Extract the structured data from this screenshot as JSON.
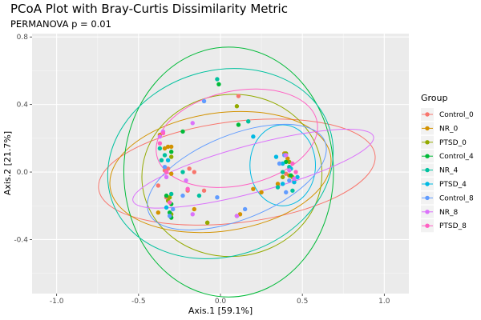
{
  "chart_data": {
    "type": "scatter",
    "title": "PCoA Plot with Bray-Curtis Dissimilarity Metric",
    "subtitle": "PERMANOVA p = 0.01",
    "xlabel": "Axis.1  [59.1%]",
    "ylabel": "Axis.2  [21.7%]",
    "xlim": [
      -1.15,
      1.15
    ],
    "ylim": [
      -0.72,
      0.82
    ],
    "xticks": [
      -1.0,
      -0.5,
      0.0,
      0.5,
      1.0
    ],
    "xtick_labels": [
      "-1.0",
      "-0.5",
      "0.0",
      "0.5",
      "1.0"
    ],
    "yticks": [
      -0.4,
      0.0,
      0.4,
      0.8
    ],
    "ytick_labels": [
      "-0.4",
      "0.0",
      "0.4",
      "0.8"
    ],
    "grid": true,
    "legend_title": "Group",
    "legend_position": "right",
    "series": [
      {
        "name": "Control_0",
        "color": "#F8766D",
        "points": [
          [
            0.11,
            0.45
          ],
          [
            -0.19,
            0.02
          ],
          [
            -0.16,
            0.0
          ],
          [
            -0.2,
            -0.11
          ],
          [
            -0.1,
            -0.11
          ],
          [
            -0.33,
            -0.15
          ],
          [
            -0.34,
            0.01
          ],
          [
            -0.32,
            0.02
          ],
          [
            -0.38,
            -0.08
          ],
          [
            0.45,
            -0.05
          ],
          [
            0.4,
            -0.01
          ]
        ],
        "ellipse": {
          "cx": 0.1,
          "cy": 0.0,
          "rx": 0.85,
          "ry": 0.3,
          "angle": 7
        }
      },
      {
        "name": "NR_0",
        "color": "#D39200",
        "points": [
          [
            -0.37,
            0.22
          ],
          [
            -0.32,
            0.15
          ],
          [
            -0.34,
            0.14
          ],
          [
            -0.3,
            0.15
          ],
          [
            -0.33,
            0.0
          ],
          [
            -0.3,
            -0.01
          ],
          [
            -0.38,
            -0.24
          ],
          [
            -0.16,
            -0.22
          ],
          [
            -0.08,
            -0.3
          ],
          [
            0.12,
            -0.25
          ],
          [
            0.2,
            -0.1
          ],
          [
            0.25,
            -0.12
          ],
          [
            0.35,
            -0.07
          ],
          [
            0.39,
            0.11
          ],
          [
            0.41,
            0.08
          ],
          [
            0.42,
            -0.02
          ],
          [
            0.44,
            -0.03
          ]
        ],
        "ellipse": {
          "cx": 0.0,
          "cy": 0.0,
          "rx": 0.68,
          "ry": 0.35,
          "angle": 8
        }
      },
      {
        "name": "PTSD_0",
        "color": "#93AA00",
        "points": [
          [
            0.1,
            0.39
          ],
          [
            -0.3,
            0.09
          ],
          [
            -0.31,
            -0.15
          ],
          [
            -0.32,
            -0.17
          ],
          [
            -0.3,
            -0.25
          ],
          [
            -0.08,
            -0.3
          ],
          [
            0.1,
            -0.26
          ],
          [
            0.4,
            0.11
          ],
          [
            0.42,
            0.06
          ],
          [
            0.38,
            -0.03
          ]
        ],
        "ellipse": {
          "cx": 0.07,
          "cy": -0.02,
          "rx": 0.55,
          "ry": 0.48,
          "angle": 5
        }
      },
      {
        "name": "Control_4",
        "color": "#00BA38",
        "points": [
          [
            -0.01,
            0.52
          ],
          [
            0.11,
            0.28
          ],
          [
            -0.23,
            0.24
          ],
          [
            -0.3,
            0.12
          ],
          [
            -0.33,
            -0.14
          ],
          [
            -0.3,
            -0.19
          ],
          [
            -0.31,
            -0.24
          ],
          [
            -0.3,
            -0.27
          ],
          [
            0.4,
            0.06
          ],
          [
            0.43,
            -0.02
          ]
        ],
        "ellipse": {
          "cx": 0.05,
          "cy": 0.0,
          "rx": 0.64,
          "ry": 0.74,
          "angle": 0
        }
      },
      {
        "name": "NR_4",
        "color": "#00C19F",
        "points": [
          [
            -0.02,
            0.55
          ],
          [
            0.17,
            0.3
          ],
          [
            -0.37,
            0.14
          ],
          [
            -0.34,
            0.1
          ],
          [
            -0.36,
            0.07
          ],
          [
            -0.23,
            0.0
          ],
          [
            -0.3,
            -0.13
          ],
          [
            -0.13,
            -0.14
          ],
          [
            0.35,
            -0.09
          ],
          [
            0.38,
            0.0
          ],
          [
            0.42,
            0.03
          ],
          [
            0.44,
            -0.11
          ]
        ],
        "ellipse": {
          "cx": 0.0,
          "cy": 0.05,
          "rx": 0.7,
          "ry": 0.55,
          "angle": 18
        }
      },
      {
        "name": "PTSD_4",
        "color": "#00B9E3",
        "points": [
          [
            0.2,
            0.21
          ],
          [
            -0.32,
            0.07
          ],
          [
            -0.33,
            -0.21
          ],
          [
            0.34,
            0.09
          ],
          [
            0.38,
            -0.07
          ],
          [
            0.45,
            -0.06
          ],
          [
            0.47,
            -0.03
          ],
          [
            0.43,
            0.02
          ],
          [
            0.38,
            0.05
          ]
        ],
        "ellipse": {
          "cx": 0.38,
          "cy": 0.04,
          "rx": 0.2,
          "ry": 0.24,
          "angle": 0
        }
      },
      {
        "name": "Control_8",
        "color": "#619CFF",
        "points": [
          [
            -0.1,
            0.42
          ],
          [
            -0.34,
            0.03
          ],
          [
            -0.29,
            -0.22
          ],
          [
            -0.31,
            -0.26
          ],
          [
            -0.23,
            -0.14
          ],
          [
            -0.02,
            -0.15
          ],
          [
            0.15,
            -0.22
          ],
          [
            0.36,
            0.05
          ],
          [
            0.39,
            0.1
          ],
          [
            0.42,
            -0.05
          ],
          [
            0.4,
            -0.12
          ]
        ],
        "ellipse": {
          "cx": 0.1,
          "cy": -0.03,
          "rx": 0.58,
          "ry": 0.25,
          "angle": 22
        }
      },
      {
        "name": "NR_8",
        "color": "#DB72FB",
        "points": [
          [
            -0.35,
            0.24
          ],
          [
            -0.37,
            0.21
          ],
          [
            -0.17,
            0.29
          ],
          [
            -0.33,
            -0.03
          ],
          [
            -0.21,
            -0.05
          ],
          [
            -0.17,
            -0.25
          ],
          [
            0.1,
            -0.26
          ],
          [
            0.4,
            0.1
          ],
          [
            0.45,
            -0.04
          ],
          [
            0.42,
            0.01
          ]
        ],
        "ellipse": {
          "cx": 0.2,
          "cy": 0.02,
          "rx": 0.76,
          "ry": 0.14,
          "angle": 15
        }
      },
      {
        "name": "PTSD_8",
        "color": "#FF61C3",
        "points": [
          [
            -0.35,
            0.23
          ],
          [
            -0.37,
            0.17
          ],
          [
            -0.33,
            0.0
          ],
          [
            -0.31,
            -0.18
          ],
          [
            -0.2,
            -0.1
          ],
          [
            0.44,
            0.05
          ],
          [
            0.46,
            0.0
          ]
        ],
        "ellipse": {
          "cx": 0.1,
          "cy": 0.2,
          "rx": 0.5,
          "ry": 0.28,
          "angle": 12
        }
      }
    ]
  }
}
